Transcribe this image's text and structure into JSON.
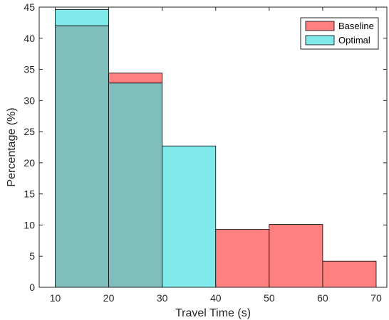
{
  "chart_data": {
    "type": "bar",
    "title": "",
    "xlabel": "Travel Time (s)",
    "ylabel": "Percentage (%)",
    "bin_edges": [
      10,
      20,
      30,
      40,
      50,
      60,
      70
    ],
    "xlim": [
      7,
      72
    ],
    "ylim": [
      0,
      45
    ],
    "xticks": [
      10,
      20,
      30,
      40,
      50,
      60,
      70
    ],
    "yticks": [
      0,
      5,
      10,
      15,
      20,
      25,
      30,
      35,
      40,
      45
    ],
    "grid": false,
    "legend_location": "top-right",
    "series": [
      {
        "name": "Baseline",
        "color": "#ff8080",
        "values": [
          42.0,
          34.4,
          0,
          9.3,
          10.1,
          4.2
        ]
      },
      {
        "name": "Optimal",
        "color": "#80eaea",
        "values": [
          44.6,
          32.8,
          22.7,
          0,
          0,
          0
        ]
      }
    ],
    "overlap_color": "#80bebe"
  }
}
